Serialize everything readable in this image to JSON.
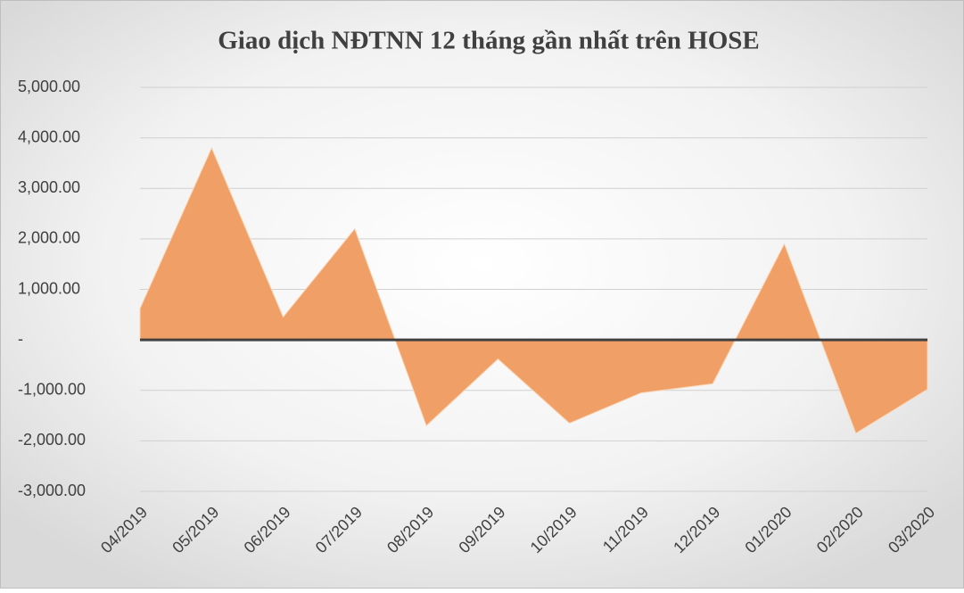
{
  "chart_data": {
    "type": "area",
    "title": "Giao dịch NĐTNN 12 tháng gần nhất trên HOSE",
    "categories": [
      "04/2019",
      "05/2019",
      "06/2019",
      "07/2019",
      "08/2019",
      "09/2019",
      "10/2019",
      "11/2019",
      "12/2019",
      "01/2020",
      "02/2020",
      "03/2020"
    ],
    "values": [
      620,
      3800,
      450,
      2200,
      -1700,
      -380,
      -1650,
      -1050,
      -870,
      1900,
      -1850,
      -980
    ],
    "color": "#f0a066",
    "ylim": [
      -3000,
      5000
    ],
    "yticks": [
      {
        "value": -3000,
        "label": "-3,000.00"
      },
      {
        "value": -2000,
        "label": "-2,000.00"
      },
      {
        "value": -1000,
        "label": "-1,000.00"
      },
      {
        "value": 0,
        "label": "-"
      },
      {
        "value": 1000,
        "label": "1,000.00"
      },
      {
        "value": 2000,
        "label": "2,000.00"
      },
      {
        "value": 3000,
        "label": "3,000.00"
      },
      {
        "value": 4000,
        "label": "4,000.00"
      },
      {
        "value": 5000,
        "label": "5,000.00"
      }
    ],
    "grid": true
  }
}
